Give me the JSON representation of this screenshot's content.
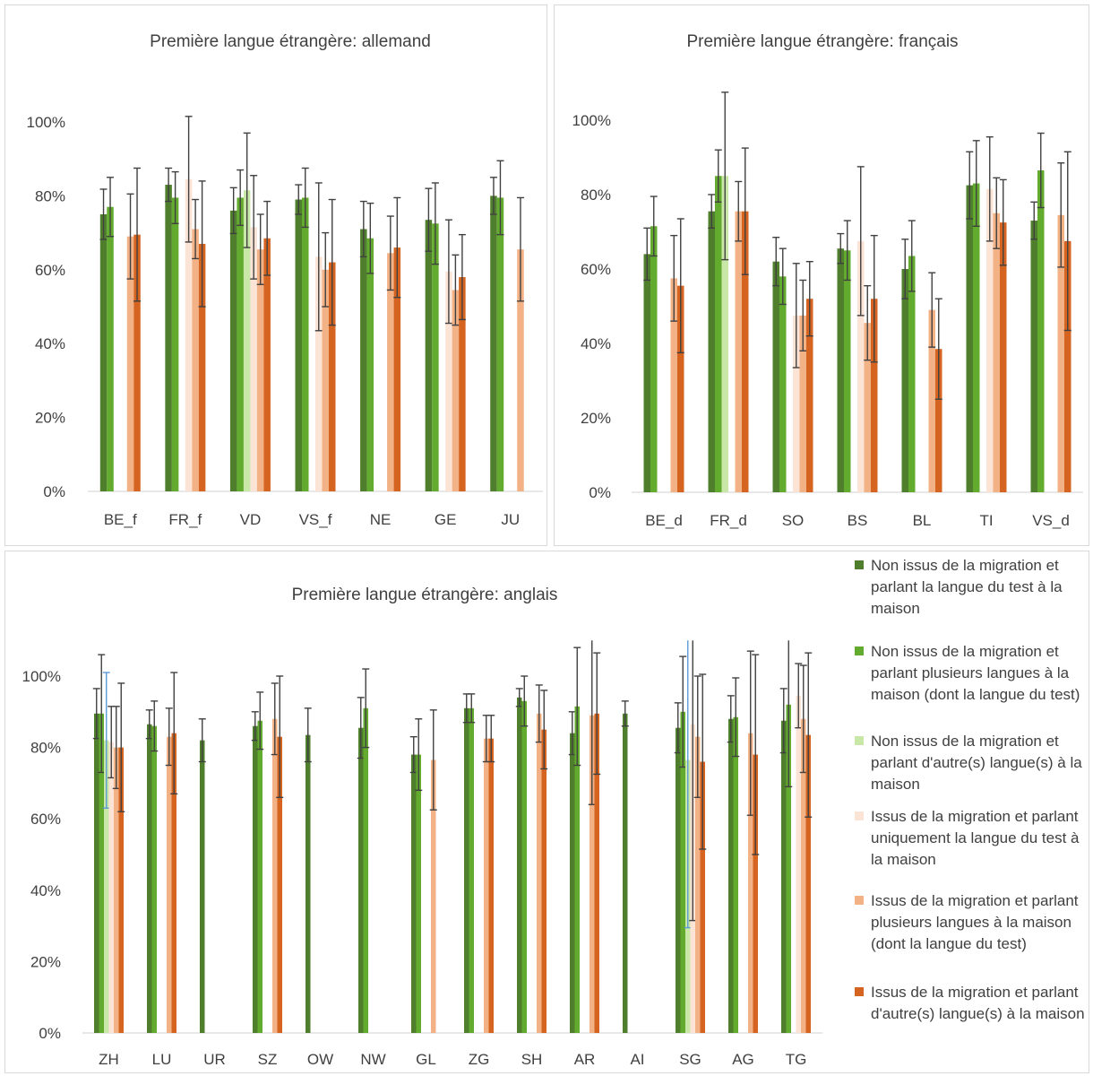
{
  "colors": {
    "s1": "#4f7f2c",
    "s2": "#63ab2e",
    "s3": "#c9e8a8",
    "s4": "#fbe3d6",
    "s5": "#f3b186",
    "s6": "#d56420",
    "error_bar": "#404040",
    "error_bar_blue": "#5b9bd5",
    "axis": "#d9d9d9"
  },
  "legend": {
    "items": [
      {
        "label": "Non issus de la migration et parlant la langue du test à la maison",
        "color": "#4f7f2c"
      },
      {
        "label": "Non issus de la migration et parlant plusieurs langues à la maison (dont la langue du test)",
        "color": "#63ab2e"
      },
      {
        "label": "Non issus de la migration et parlant d'autre(s) langue(s) à la maison",
        "color": "#c9e8a8"
      },
      {
        "label": "Issus de la migration et parlant uniquement la langue du test à la maison",
        "color": "#fbe3d6"
      },
      {
        "label": "Issus de la migration et parlant plusieurs langues à la maison (dont la langue du test)",
        "color": "#f3b186"
      },
      {
        "label": "Issus de la migration et parlant d'autre(s) langue(s) à la maison",
        "color": "#d56420"
      }
    ]
  },
  "chart_data": [
    {
      "id": "allemand",
      "type": "bar",
      "title": "Première langue étrangère: allemand",
      "ylim": [
        0,
        1.1
      ],
      "yticks": [
        "0%",
        "20%",
        "40%",
        "60%",
        "80%",
        "100%"
      ],
      "categories": [
        "BE_f",
        "FR_f",
        "VD",
        "VS_f",
        "NE",
        "GE",
        "JU"
      ],
      "series": [
        {
          "values": [
            0.75,
            0.83,
            0.76,
            0.79,
            0.71,
            0.735,
            0.8
          ],
          "errors": [
            0.068,
            0.045,
            0.062,
            0.04,
            0.075,
            0.085,
            0.05
          ]
        },
        {
          "values": [
            0.77,
            0.795,
            0.795,
            0.795,
            0.685,
            0.725,
            0.795
          ],
          "errors": [
            0.08,
            0.07,
            0.075,
            0.08,
            0.095,
            0.11,
            0.1
          ]
        },
        {
          "values": [
            null,
            null,
            0.815,
            null,
            null,
            null,
            null
          ],
          "errors": [
            null,
            null,
            0.155,
            null,
            null,
            null,
            null
          ]
        },
        {
          "values": [
            null,
            0.845,
            0.715,
            0.635,
            null,
            0.595,
            null
          ],
          "errors": [
            null,
            0.17,
            0.14,
            0.2,
            null,
            0.14,
            null
          ]
        },
        {
          "values": [
            0.69,
            0.71,
            0.655,
            0.6,
            0.645,
            0.545,
            0.655
          ],
          "errors": [
            0.115,
            0.08,
            0.095,
            0.1,
            0.1,
            0.095,
            0.14
          ]
        },
        {
          "values": [
            0.695,
            0.67,
            0.685,
            0.62,
            0.66,
            0.58,
            null
          ],
          "errors": [
            0.18,
            0.17,
            0.1,
            0.17,
            0.135,
            0.115,
            null
          ]
        }
      ]
    },
    {
      "id": "francais",
      "type": "bar",
      "title": "Première langue étrangère: français",
      "ylim": [
        0,
        1.1
      ],
      "yticks": [
        "0%",
        "20%",
        "40%",
        "60%",
        "80%",
        "100%"
      ],
      "categories": [
        "BE_d",
        "FR_d",
        "SO",
        "BS",
        "BL",
        "TI",
        "VS_d"
      ],
      "series": [
        {
          "values": [
            0.64,
            0.755,
            0.62,
            0.655,
            0.6,
            0.825,
            0.73
          ],
          "errors": [
            0.07,
            0.045,
            0.065,
            0.04,
            0.08,
            0.09,
            0.05
          ]
        },
        {
          "values": [
            0.715,
            0.85,
            0.58,
            0.65,
            0.635,
            0.83,
            0.865
          ],
          "errors": [
            0.08,
            0.07,
            0.075,
            0.08,
            0.095,
            0.115,
            0.1
          ]
        },
        {
          "values": [
            null,
            0.85,
            null,
            null,
            null,
            null,
            null
          ],
          "errors": [
            null,
            0.225,
            null,
            null,
            null,
            null,
            null
          ]
        },
        {
          "values": [
            null,
            null,
            0.475,
            0.675,
            null,
            0.815,
            null
          ],
          "errors": [
            null,
            null,
            0.14,
            0.2,
            null,
            0.14,
            null
          ]
        },
        {
          "values": [
            0.575,
            0.755,
            0.475,
            0.455,
            0.49,
            0.75,
            0.745
          ],
          "errors": [
            0.115,
            0.08,
            0.095,
            0.1,
            0.1,
            0.095,
            0.14
          ]
        },
        {
          "values": [
            0.555,
            0.755,
            0.52,
            0.52,
            0.385,
            0.725,
            0.675
          ],
          "errors": [
            0.18,
            0.17,
            0.1,
            0.17,
            0.135,
            0.115,
            0.24
          ]
        }
      ]
    },
    {
      "id": "anglais",
      "type": "bar",
      "title": "Première langue étrangère: anglais",
      "ylim": [
        0,
        1.1
      ],
      "yticks": [
        "0%",
        "20%",
        "40%",
        "60%",
        "80%",
        "100%"
      ],
      "categories": [
        "ZH",
        "LU",
        "UR",
        "SZ",
        "OW",
        "NW",
        "GL",
        "ZG",
        "SH",
        "AR",
        "AI",
        "SG",
        "AG",
        "TG"
      ],
      "series": [
        {
          "values": [
            0.895,
            0.865,
            0.82,
            0.86,
            0.835,
            0.855,
            0.78,
            0.91,
            0.94,
            0.84,
            0.895,
            0.855,
            0.88,
            0.875
          ],
          "errors": [
            0.07,
            0.04,
            0.06,
            0.04,
            0.075,
            0.085,
            0.05,
            0.04,
            0.025,
            0.06,
            0.035,
            0.07,
            0.065,
            0.09
          ]
        },
        {
          "values": [
            0.895,
            0.86,
            null,
            0.875,
            null,
            0.91,
            0.78,
            0.91,
            0.93,
            0.915,
            null,
            0.9,
            0.885,
            0.92
          ],
          "errors": [
            0.165,
            0.07,
            null,
            0.08,
            null,
            0.11,
            0.1,
            0.04,
            0.07,
            0.165,
            null,
            0.155,
            0.11,
            0.23
          ]
        },
        {
          "values": [
            0.82,
            null,
            null,
            null,
            null,
            null,
            null,
            null,
            null,
            null,
            null,
            0.765,
            null,
            null
          ],
          "errors": [
            0.19,
            null,
            null,
            null,
            null,
            null,
            null,
            null,
            null,
            null,
            null,
            0.47,
            null,
            null
          ]
        },
        {
          "values": [
            0.815,
            null,
            null,
            null,
            null,
            null,
            null,
            null,
            null,
            null,
            null,
            0.865,
            null,
            0.945
          ],
          "errors": [
            0.1,
            null,
            null,
            null,
            null,
            null,
            null,
            null,
            null,
            null,
            null,
            0.55,
            null,
            0.09
          ]
        },
        {
          "values": [
            0.8,
            0.83,
            null,
            0.88,
            null,
            null,
            0.765,
            0.825,
            0.895,
            0.89,
            null,
            0.83,
            0.84,
            0.88
          ],
          "errors": [
            0.115,
            0.08,
            null,
            0.1,
            null,
            null,
            0.14,
            0.065,
            0.08,
            0.25,
            null,
            0.17,
            0.23,
            0.15
          ]
        },
        {
          "values": [
            0.8,
            0.84,
            null,
            0.83,
            null,
            null,
            null,
            0.825,
            0.85,
            0.895,
            null,
            0.76,
            0.78,
            0.835
          ],
          "errors": [
            0.18,
            0.17,
            null,
            0.17,
            null,
            null,
            null,
            0.065,
            0.11,
            0.17,
            null,
            0.245,
            0.28,
            0.23
          ]
        }
      ]
    }
  ]
}
